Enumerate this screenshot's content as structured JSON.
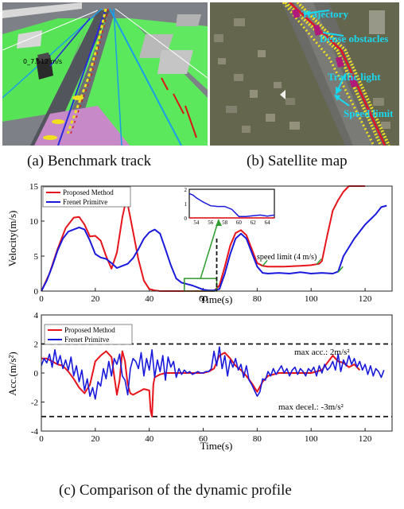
{
  "panel_a": {
    "caption": "(a) Benchmark track",
    "speed_readout": "0_7.512  m/s"
  },
  "panel_b": {
    "caption": "(b) Satellite map",
    "labels": [
      "Trajectory",
      "Dense obstacles",
      "Traffic light",
      "Speed limit"
    ]
  },
  "caption_c": "(c) Comparison of the dynamic profile",
  "colors": {
    "proposed": "#e8141c",
    "frenet": "#1a1adc",
    "inset_box": "#2e9b2e",
    "label_cyan": "#18d8f0"
  },
  "chart_data": [
    {
      "type": "line",
      "xlabel": "Time(s)",
      "ylabel": "Velocity(m/s)",
      "xlim": [
        0,
        130
      ],
      "ylim": [
        0,
        15
      ],
      "xticks": [
        0,
        20,
        40,
        60,
        80,
        100,
        120
      ],
      "yticks": [
        0,
        5,
        10,
        15
      ],
      "legend_position": "top-left",
      "annotation": "speed limit (4 m/s)",
      "series": [
        {
          "name": "Proposed Method",
          "x": [
            0,
            3,
            6,
            9,
            12,
            14,
            16,
            18,
            20,
            22,
            24,
            26,
            28,
            30,
            31,
            32,
            34,
            36,
            38,
            40,
            42,
            44,
            50,
            56,
            60,
            64,
            66,
            68,
            70,
            72,
            74,
            76,
            78,
            80,
            82,
            84,
            90,
            96,
            100,
            103,
            104,
            106,
            108,
            110,
            112,
            114,
            116,
            118,
            120
          ],
          "y": [
            0,
            2.5,
            6,
            9,
            10.5,
            10.6,
            9.5,
            7.8,
            7.9,
            7.2,
            5,
            3.2,
            5.5,
            10.5,
            12.3,
            12.4,
            8.5,
            4.5,
            1.5,
            0.3,
            0.1,
            0,
            0,
            0,
            0,
            0,
            0.8,
            3.5,
            6.5,
            8.3,
            8.7,
            8,
            6,
            4,
            3.6,
            3.5,
            3.5,
            3.6,
            3.7,
            3.9,
            4.3,
            8,
            11.5,
            13,
            14.2,
            15,
            15,
            15,
            15
          ]
        },
        {
          "name": "Frenet Primitve",
          "x": [
            0,
            2,
            4,
            6,
            8,
            10,
            12,
            14,
            16,
            18,
            20,
            22,
            24,
            26,
            28,
            30,
            32,
            34,
            36,
            38,
            40,
            42,
            44,
            46,
            48,
            50,
            52,
            54,
            56,
            58,
            60,
            62,
            64,
            66,
            68,
            70,
            72,
            74,
            76,
            78,
            80,
            82,
            84,
            88,
            92,
            96,
            100,
            104,
            108,
            110,
            112,
            116,
            120,
            124,
            126,
            128
          ],
          "y": [
            0,
            1.5,
            3.5,
            5.8,
            7.5,
            8.5,
            8.8,
            9.1,
            8.8,
            7.2,
            5.3,
            4.8,
            4.6,
            4,
            3.3,
            3.6,
            3.9,
            4.7,
            6,
            7.5,
            8.4,
            8.8,
            8.2,
            6,
            3.7,
            1.8,
            1.2,
            1,
            0.8,
            0.5,
            0.2,
            0.1,
            0.1,
            0.3,
            2.5,
            5.3,
            7.5,
            8.2,
            7.5,
            5.5,
            3.5,
            2.6,
            2.5,
            2.6,
            2.5,
            2.7,
            2.5,
            2.6,
            2.5,
            2.8,
            5,
            7.5,
            9.5,
            11,
            12,
            12.2
          ]
        }
      ],
      "inset": {
        "xlim": [
          53,
          65
        ],
        "ylim": [
          0,
          2
        ],
        "xticks": [
          54,
          56,
          58,
          60,
          62,
          64
        ],
        "yticks": [
          0,
          1,
          2
        ],
        "frenet": {
          "x": [
            53,
            53.5,
            54,
            55,
            56,
            57,
            58,
            59,
            60,
            61,
            62,
            63,
            64,
            65
          ],
          "y": [
            1.7,
            1.6,
            1.4,
            1.1,
            0.85,
            0.8,
            0.8,
            0.6,
            0.1,
            0.1,
            0.15,
            0.2,
            0.12,
            0.2
          ]
        },
        "proposed": {
          "x": [
            53,
            65
          ],
          "y": [
            0,
            0
          ]
        }
      }
    },
    {
      "type": "line",
      "xlabel": "Time(s)",
      "ylabel": "Acc.(m/s²)",
      "xlim": [
        0,
        130
      ],
      "ylim": [
        -4,
        4
      ],
      "xticks": [
        0,
        20,
        40,
        60,
        80,
        100,
        120
      ],
      "yticks": [
        -4,
        -2,
        0,
        2,
        4
      ],
      "legend_position": "top-left",
      "reference_lines": [
        {
          "y": 2,
          "label": "max acc.: 2m/s²"
        },
        {
          "y": -3,
          "label": "max decel.: -3m/s²"
        }
      ],
      "series": [
        {
          "name": "Proposed Method",
          "x": [
            0,
            2,
            4,
            6,
            8,
            10,
            12,
            14,
            16,
            18,
            20,
            22,
            24,
            26,
            28,
            29,
            30,
            31,
            32,
            33,
            34,
            36,
            38,
            40,
            40.5,
            41,
            41.5,
            42,
            44,
            46,
            50,
            54,
            58,
            60,
            62,
            64,
            66,
            68,
            70,
            72,
            74,
            76,
            78,
            80,
            82,
            84,
            88,
            92,
            96,
            100,
            104,
            106,
            108,
            110,
            112,
            114,
            116,
            118
          ],
          "y": [
            1,
            1,
            0.8,
            0.6,
            0.5,
            0.1,
            -0.4,
            -1,
            -1.4,
            -0.8,
            0.8,
            1.2,
            1.5,
            1.1,
            -1.5,
            -0.5,
            1.5,
            0.8,
            -0.8,
            -1.4,
            -1.5,
            -1.3,
            -1.1,
            -1.2,
            -2.6,
            -3,
            -0.8,
            -0.3,
            -0.1,
            0,
            0,
            0,
            0,
            0,
            0.1,
            0.3,
            1.2,
            1.4,
            1,
            0.5,
            0.2,
            -0.2,
            -0.7,
            -1.3,
            -0.6,
            -0.2,
            0,
            0,
            0,
            0,
            0.2,
            0.7,
            1.2,
            0.8,
            0.7,
            0.4,
            0.6,
            0.2
          ]
        },
        {
          "name": "Frenet Primitve",
          "x": [
            0,
            1,
            2,
            3,
            4,
            5,
            6,
            7,
            8,
            9,
            10,
            11,
            12,
            13,
            14,
            15,
            16,
            17,
            18,
            19,
            20,
            21,
            22,
            23,
            24,
            25,
            26,
            27,
            28,
            29,
            30,
            31,
            32,
            33,
            34,
            35,
            36,
            37,
            38,
            39,
            40,
            41,
            42,
            43,
            44,
            45,
            46,
            47,
            48,
            49,
            50,
            51,
            52,
            53,
            54,
            55,
            56,
            57,
            58,
            59,
            60,
            61,
            62,
            63,
            64,
            65,
            66,
            67,
            68,
            69,
            70,
            71,
            72,
            73,
            74,
            75,
            76,
            77,
            78,
            79,
            80,
            81,
            82,
            83,
            84,
            85,
            86,
            87,
            88,
            89,
            90,
            91,
            92,
            93,
            94,
            95,
            96,
            97,
            98,
            99,
            100,
            101,
            102,
            103,
            104,
            105,
            106,
            107,
            108,
            109,
            110,
            111,
            112,
            113,
            114,
            115,
            116,
            117,
            118,
            119,
            120,
            121,
            122,
            123,
            124,
            125,
            126,
            127
          ],
          "y": [
            0.5,
            1,
            0.7,
            1.3,
            0.4,
            1.6,
            0.6,
            1.2,
            0.3,
            0.9,
            0.2,
            1.1,
            -0.2,
            0.5,
            -0.6,
            0.2,
            -1.2,
            -0.4,
            -1.6,
            -1,
            -1.8,
            -0.6,
            -0.9,
            0.3,
            -0.4,
            0.8,
            -0.2,
            1,
            0.6,
            1.3,
            -0.2,
            -0.5,
            -1.5,
            0.3,
            1,
            0.8,
            0.3,
            1.4,
            -0.2,
            1,
            0.2,
            1.6,
            -0.3,
            0.9,
            0.1,
            1.2,
            -0.5,
            1.1,
            0.4,
            0.8,
            -0.3,
            0.3,
            -0.1,
            0.2,
            0,
            0.1,
            -0.1,
            0,
            0.1,
            0,
            0,
            0.1,
            0.1,
            0.3,
            1.5,
            0.5,
            1.8,
            0.3,
            1.2,
            -0.2,
            0.9,
            0.4,
            1,
            0.2,
            0.6,
            -0.3,
            0.5,
            -0.5,
            -0.8,
            -1.2,
            -1.6,
            -1.3,
            -0.4,
            -0.5,
            0.1,
            -0.2,
            0.3,
            -0.1,
            0.2,
            0.5,
            0,
            0.3,
            -0.2,
            0.2,
            0.4,
            -0.1,
            0.3,
            0.1,
            -0.2,
            0.3,
            0.1,
            0.4,
            -0.2,
            0.5,
            0,
            0.6,
            0.2,
            0.4,
            0.8,
            0.2,
            1.3,
            0.1,
            0.9,
            0.5,
            1.2,
            0.6,
            1,
            0.4,
            0.8,
            0.2,
            0.6,
            -0.1,
            0.5,
            -0.2,
            0.3,
            0.1,
            -0.3,
            0.2
          ]
        }
      ]
    }
  ]
}
